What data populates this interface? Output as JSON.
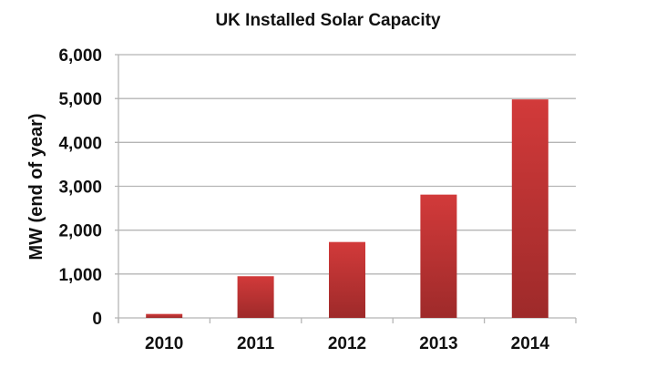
{
  "chart_data": {
    "type": "bar",
    "title": "UK Installed Solar Capacity",
    "xlabel": "",
    "ylabel": "MW (end of year)",
    "categories": [
      "2010",
      "2011",
      "2012",
      "2013",
      "2014"
    ],
    "values": [
      90,
      950,
      1730,
      2810,
      4980
    ],
    "ylim": [
      0,
      6000
    ],
    "yticks": [
      0,
      1000,
      2000,
      3000,
      4000,
      5000,
      6000
    ],
    "ytick_labels": [
      "0",
      "1,000",
      "2,000",
      "3,000",
      "4,000",
      "5,000",
      "6,000"
    ],
    "grid": true,
    "bar_color_top": "#d23a3a",
    "bar_color_bottom": "#9e2a2a"
  }
}
